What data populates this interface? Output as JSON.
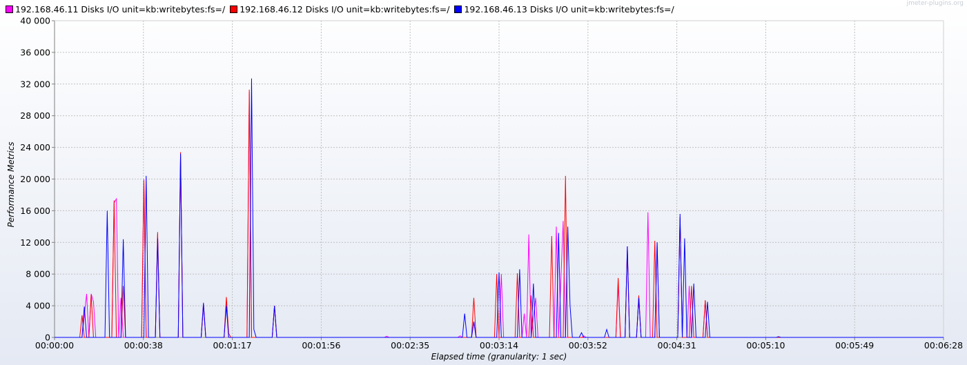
{
  "chart_data": {
    "type": "line",
    "title": "",
    "watermark": "jmeter-plugins.org",
    "xlabel": "Elapsed time (granularity: 1 sec)",
    "ylabel": "Performance Metrics",
    "ylim": [
      0,
      40000
    ],
    "xlim_seconds": [
      0,
      388
    ],
    "y_ticks": [
      "0",
      "4 000",
      "8 000",
      "12 000",
      "16 000",
      "20 000",
      "24 000",
      "28 000",
      "32 000",
      "36 000",
      "40 000"
    ],
    "x_ticks": [
      "00:00:00",
      "00:00:38",
      "00:01:17",
      "00:01:56",
      "00:02:35",
      "00:03:14",
      "00:03:52",
      "00:04:31",
      "00:05:10",
      "00:05:49",
      "00:06:28"
    ],
    "grid": true,
    "legend_position": "top-left",
    "series": [
      {
        "name": "192.168.46.11 Disks I/O unit=kb:writebytes:fs=/",
        "color": "#ff00ff",
        "points": [
          [
            12,
            0
          ],
          [
            14,
            5500
          ],
          [
            15,
            0
          ],
          [
            16,
            5500
          ],
          [
            17,
            4500
          ],
          [
            18,
            0
          ],
          [
            25,
            0
          ],
          [
            26,
            17000
          ],
          [
            27,
            17500
          ],
          [
            28,
            0
          ],
          [
            29,
            5000
          ],
          [
            30,
            0
          ],
          [
            38,
            0
          ],
          [
            39,
            20000
          ],
          [
            40,
            0
          ],
          [
            44,
            0
          ],
          [
            45,
            13000
          ],
          [
            46,
            0
          ],
          [
            54,
            0
          ],
          [
            55,
            23000
          ],
          [
            56,
            0
          ],
          [
            64,
            0
          ],
          [
            65,
            4400
          ],
          [
            66,
            0
          ],
          [
            74,
            0
          ],
          [
            75,
            4500
          ],
          [
            76,
            0
          ],
          [
            84,
            0
          ],
          [
            85,
            31000
          ],
          [
            86,
            0
          ],
          [
            95,
            0
          ],
          [
            96,
            4000
          ],
          [
            97,
            0
          ],
          [
            144,
            0
          ],
          [
            145,
            150
          ],
          [
            146,
            0
          ],
          [
            176,
            0
          ],
          [
            177,
            200
          ],
          [
            178,
            0
          ],
          [
            182,
            0
          ],
          [
            183,
            2000
          ],
          [
            184,
            0
          ],
          [
            194,
            0
          ],
          [
            195,
            8000
          ],
          [
            196,
            0
          ],
          [
            204,
            0
          ],
          [
            205,
            3000
          ],
          [
            206,
            0
          ],
          [
            207,
            13000
          ],
          [
            208,
            0
          ],
          [
            210,
            5000
          ],
          [
            211,
            0
          ],
          [
            218,
            0
          ],
          [
            219,
            14000
          ],
          [
            220,
            0
          ],
          [
            222,
            14700
          ],
          [
            223,
            0
          ],
          [
            230,
            0
          ],
          [
            231,
            200
          ],
          [
            232,
            0
          ],
          [
            245,
            0
          ],
          [
            246,
            6800
          ],
          [
            247,
            0
          ],
          [
            249,
            0
          ],
          [
            250,
            11500
          ],
          [
            251,
            0
          ],
          [
            254,
            0
          ],
          [
            255,
            5000
          ],
          [
            256,
            0
          ],
          [
            258,
            0
          ],
          [
            259,
            15800
          ],
          [
            260,
            0
          ],
          [
            262,
            0
          ],
          [
            263,
            12000
          ],
          [
            264,
            0
          ],
          [
            272,
            0
          ],
          [
            273,
            15000
          ],
          [
            274,
            0
          ],
          [
            276,
            0
          ],
          [
            277,
            6500
          ],
          [
            278,
            0
          ],
          [
            283,
            0
          ],
          [
            284,
            4600
          ],
          [
            285,
            0
          ]
        ]
      },
      {
        "name": "192.168.46.12 Disks I/O unit=kb:writebytes:fs=/",
        "color": "#ff0000",
        "points": [
          [
            11,
            0
          ],
          [
            12,
            2800
          ],
          [
            13,
            0
          ],
          [
            15,
            0
          ],
          [
            16,
            5400
          ],
          [
            17,
            0
          ],
          [
            25,
            0
          ],
          [
            26,
            17300
          ],
          [
            27,
            0
          ],
          [
            29,
            0
          ],
          [
            30,
            6500
          ],
          [
            31,
            0
          ],
          [
            38,
            0
          ],
          [
            39,
            19800
          ],
          [
            40,
            0
          ],
          [
            44,
            0
          ],
          [
            45,
            13300
          ],
          [
            46,
            0
          ],
          [
            54,
            0
          ],
          [
            55,
            23400
          ],
          [
            56,
            0
          ],
          [
            64,
            0
          ],
          [
            65,
            4000
          ],
          [
            66,
            0
          ],
          [
            74,
            0
          ],
          [
            75,
            5100
          ],
          [
            76,
            500
          ],
          [
            77,
            0
          ],
          [
            84,
            0
          ],
          [
            85,
            31300
          ],
          [
            86,
            0
          ],
          [
            95,
            0
          ],
          [
            96,
            4000
          ],
          [
            97,
            0
          ],
          [
            182,
            0
          ],
          [
            183,
            5000
          ],
          [
            184,
            0
          ],
          [
            192,
            0
          ],
          [
            193,
            8000
          ],
          [
            194,
            0
          ],
          [
            201,
            0
          ],
          [
            202,
            8100
          ],
          [
            203,
            0
          ],
          [
            207,
            0
          ],
          [
            208,
            5300
          ],
          [
            209,
            0
          ],
          [
            216,
            0
          ],
          [
            217,
            12800
          ],
          [
            218,
            0
          ],
          [
            222,
            0
          ],
          [
            223,
            20400
          ],
          [
            224,
            0
          ],
          [
            245,
            0
          ],
          [
            246,
            7500
          ],
          [
            247,
            0
          ],
          [
            249,
            0
          ],
          [
            250,
            11000
          ],
          [
            251,
            0
          ],
          [
            254,
            0
          ],
          [
            255,
            5300
          ],
          [
            256,
            0
          ],
          [
            261,
            0
          ],
          [
            262,
            12200
          ],
          [
            263,
            0
          ],
          [
            272,
            0
          ],
          [
            273,
            15200
          ],
          [
            274,
            0
          ],
          [
            277,
            0
          ],
          [
            278,
            6500
          ],
          [
            279,
            0
          ],
          [
            283,
            0
          ],
          [
            284,
            4700
          ],
          [
            285,
            0
          ]
        ]
      },
      {
        "name": "192.168.46.13 Disks I/O unit=kb:writebytes:fs=/",
        "color": "#0000ff",
        "points": [
          [
            12,
            0
          ],
          [
            13,
            3900
          ],
          [
            14,
            0
          ],
          [
            22,
            0
          ],
          [
            23,
            16000
          ],
          [
            24,
            0
          ],
          [
            29,
            0
          ],
          [
            30,
            12400
          ],
          [
            31,
            0
          ],
          [
            39,
            0
          ],
          [
            40,
            20400
          ],
          [
            41,
            0
          ],
          [
            44,
            0
          ],
          [
            45,
            12500
          ],
          [
            46,
            0
          ],
          [
            54,
            0
          ],
          [
            55,
            23200
          ],
          [
            56,
            0
          ],
          [
            64,
            0
          ],
          [
            65,
            4300
          ],
          [
            66,
            0
          ],
          [
            74,
            0
          ],
          [
            75,
            4000
          ],
          [
            76,
            0
          ],
          [
            85,
            0
          ],
          [
            86,
            32700
          ],
          [
            87,
            1000
          ],
          [
            88,
            0
          ],
          [
            95,
            0
          ],
          [
            96,
            4000
          ],
          [
            97,
            0
          ],
          [
            178,
            0
          ],
          [
            179,
            3000
          ],
          [
            180,
            0
          ],
          [
            182,
            0
          ],
          [
            183,
            2000
          ],
          [
            184,
            0
          ],
          [
            193,
            0
          ],
          [
            194,
            8200
          ],
          [
            195,
            0
          ],
          [
            202,
            0
          ],
          [
            203,
            8600
          ],
          [
            204,
            0
          ],
          [
            208,
            0
          ],
          [
            209,
            6800
          ],
          [
            210,
            0
          ],
          [
            219,
            0
          ],
          [
            220,
            13200
          ],
          [
            221,
            0
          ],
          [
            223,
            0
          ],
          [
            224,
            14000
          ],
          [
            225,
            4000
          ],
          [
            226,
            0
          ],
          [
            229,
            0
          ],
          [
            230,
            600
          ],
          [
            231,
            0
          ],
          [
            240,
            0
          ],
          [
            241,
            1000
          ],
          [
            242,
            0
          ],
          [
            249,
            0
          ],
          [
            250,
            11500
          ],
          [
            251,
            0
          ],
          [
            254,
            0
          ],
          [
            255,
            5000
          ],
          [
            256,
            0
          ],
          [
            262,
            0
          ],
          [
            263,
            12000
          ],
          [
            264,
            0
          ],
          [
            272,
            0
          ],
          [
            273,
            15600
          ],
          [
            274,
            0
          ],
          [
            275,
            12500
          ],
          [
            276,
            0
          ],
          [
            278,
            0
          ],
          [
            279,
            6800
          ],
          [
            280,
            0
          ],
          [
            284,
            0
          ],
          [
            285,
            4500
          ],
          [
            286,
            0
          ],
          [
            315,
            0
          ],
          [
            316,
            100
          ],
          [
            317,
            0
          ]
        ]
      }
    ]
  }
}
